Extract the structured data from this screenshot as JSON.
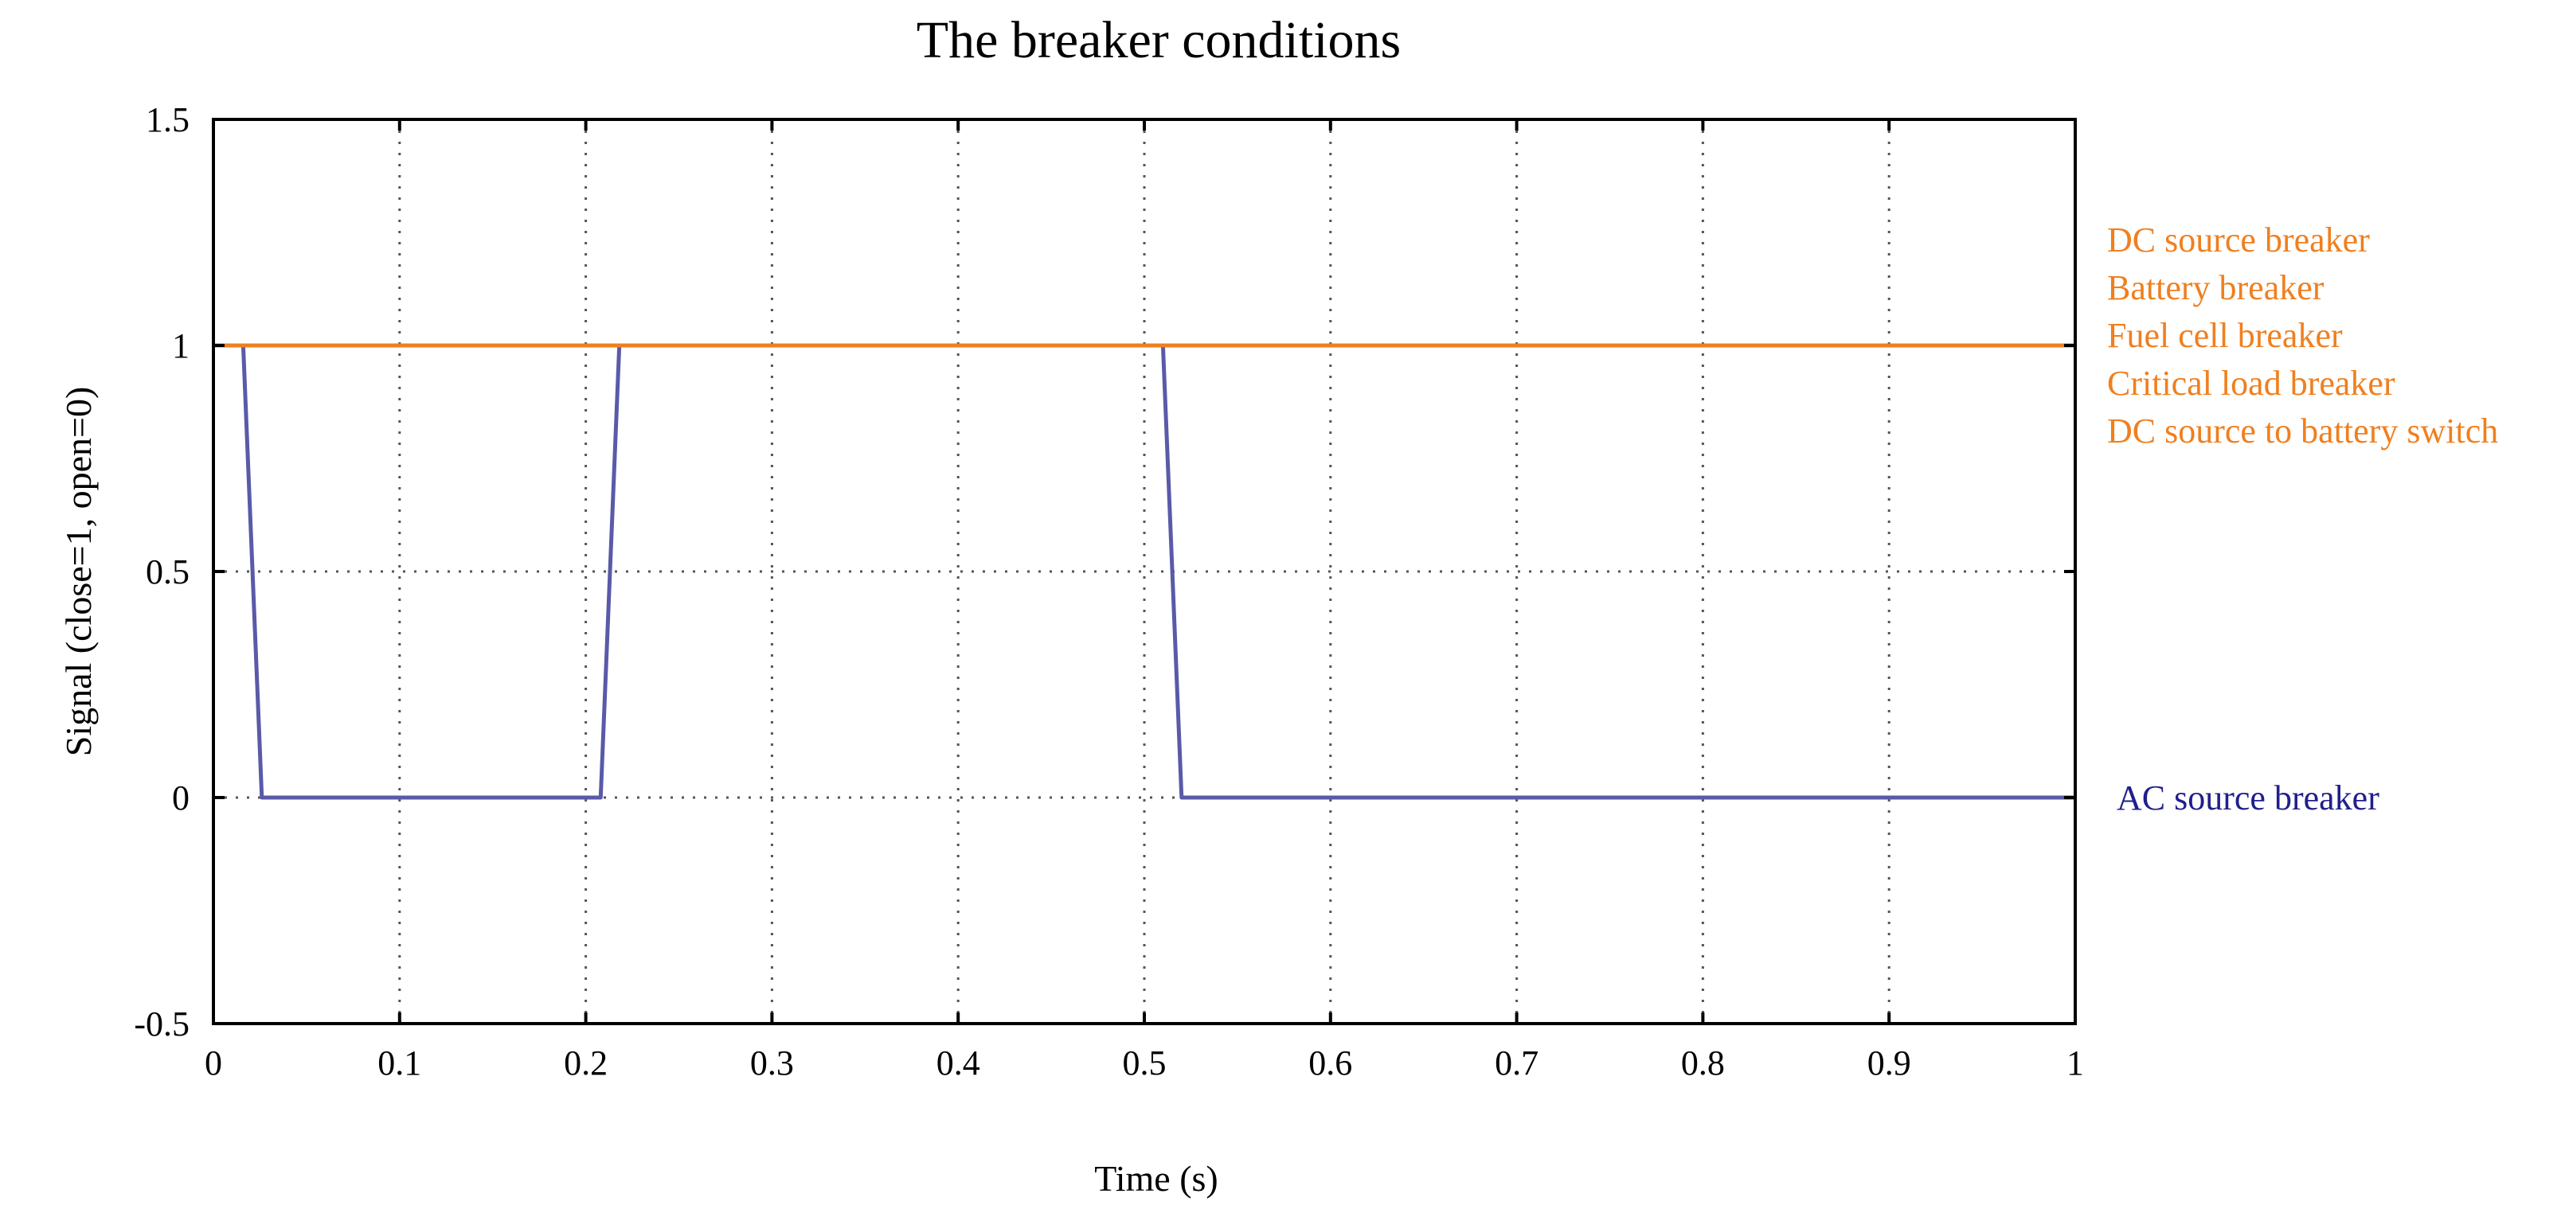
{
  "chart_data": {
    "type": "line",
    "title": "The breaker conditions",
    "xlabel": "Time (s)",
    "ylabel": "Signal (close=1, open=0)",
    "xlim": [
      0,
      1
    ],
    "ylim": [
      -0.5,
      1.5
    ],
    "xticks": [
      0,
      0.1,
      0.2,
      0.3,
      0.4,
      0.5,
      0.6,
      0.7,
      0.8,
      0.9,
      1
    ],
    "yticks": [
      -0.5,
      0,
      0.5,
      1,
      1.5
    ],
    "xtick_labels": [
      "0",
      "0.1",
      "0.2",
      "0.3",
      "0.4",
      "0.5",
      "0.6",
      "0.7",
      "0.8",
      "0.9",
      "1"
    ],
    "ytick_labels": [
      "-0.5",
      "0",
      "0.5",
      "1",
      "1.5"
    ],
    "grid": true,
    "legend_placement": "right",
    "series": [
      {
        "name": "DC source breaker",
        "color": "#f07f1e",
        "x": [
          0,
          1
        ],
        "y": [
          1,
          1
        ]
      },
      {
        "name": "Battery breaker",
        "color": "#f07f1e",
        "x": [
          0,
          1
        ],
        "y": [
          1,
          1
        ]
      },
      {
        "name": "Fuel cell breaker",
        "color": "#f07f1e",
        "x": [
          0,
          1
        ],
        "y": [
          1,
          1
        ]
      },
      {
        "name": "Critical load breaker",
        "color": "#f07f1e",
        "x": [
          0,
          1
        ],
        "y": [
          1,
          1
        ]
      },
      {
        "name": "DC source to battery switch",
        "color": "#f07f1e",
        "x": [
          0,
          1
        ],
        "y": [
          1,
          1
        ]
      },
      {
        "name": "AC source breaker",
        "color": "#5a5aa8",
        "label_color": "#1f1f8c",
        "x": [
          0,
          0.016,
          0.026,
          0.208,
          0.218,
          0.51,
          0.52,
          1
        ],
        "y": [
          1,
          1,
          0,
          0,
          1,
          1,
          0,
          0
        ]
      }
    ]
  }
}
